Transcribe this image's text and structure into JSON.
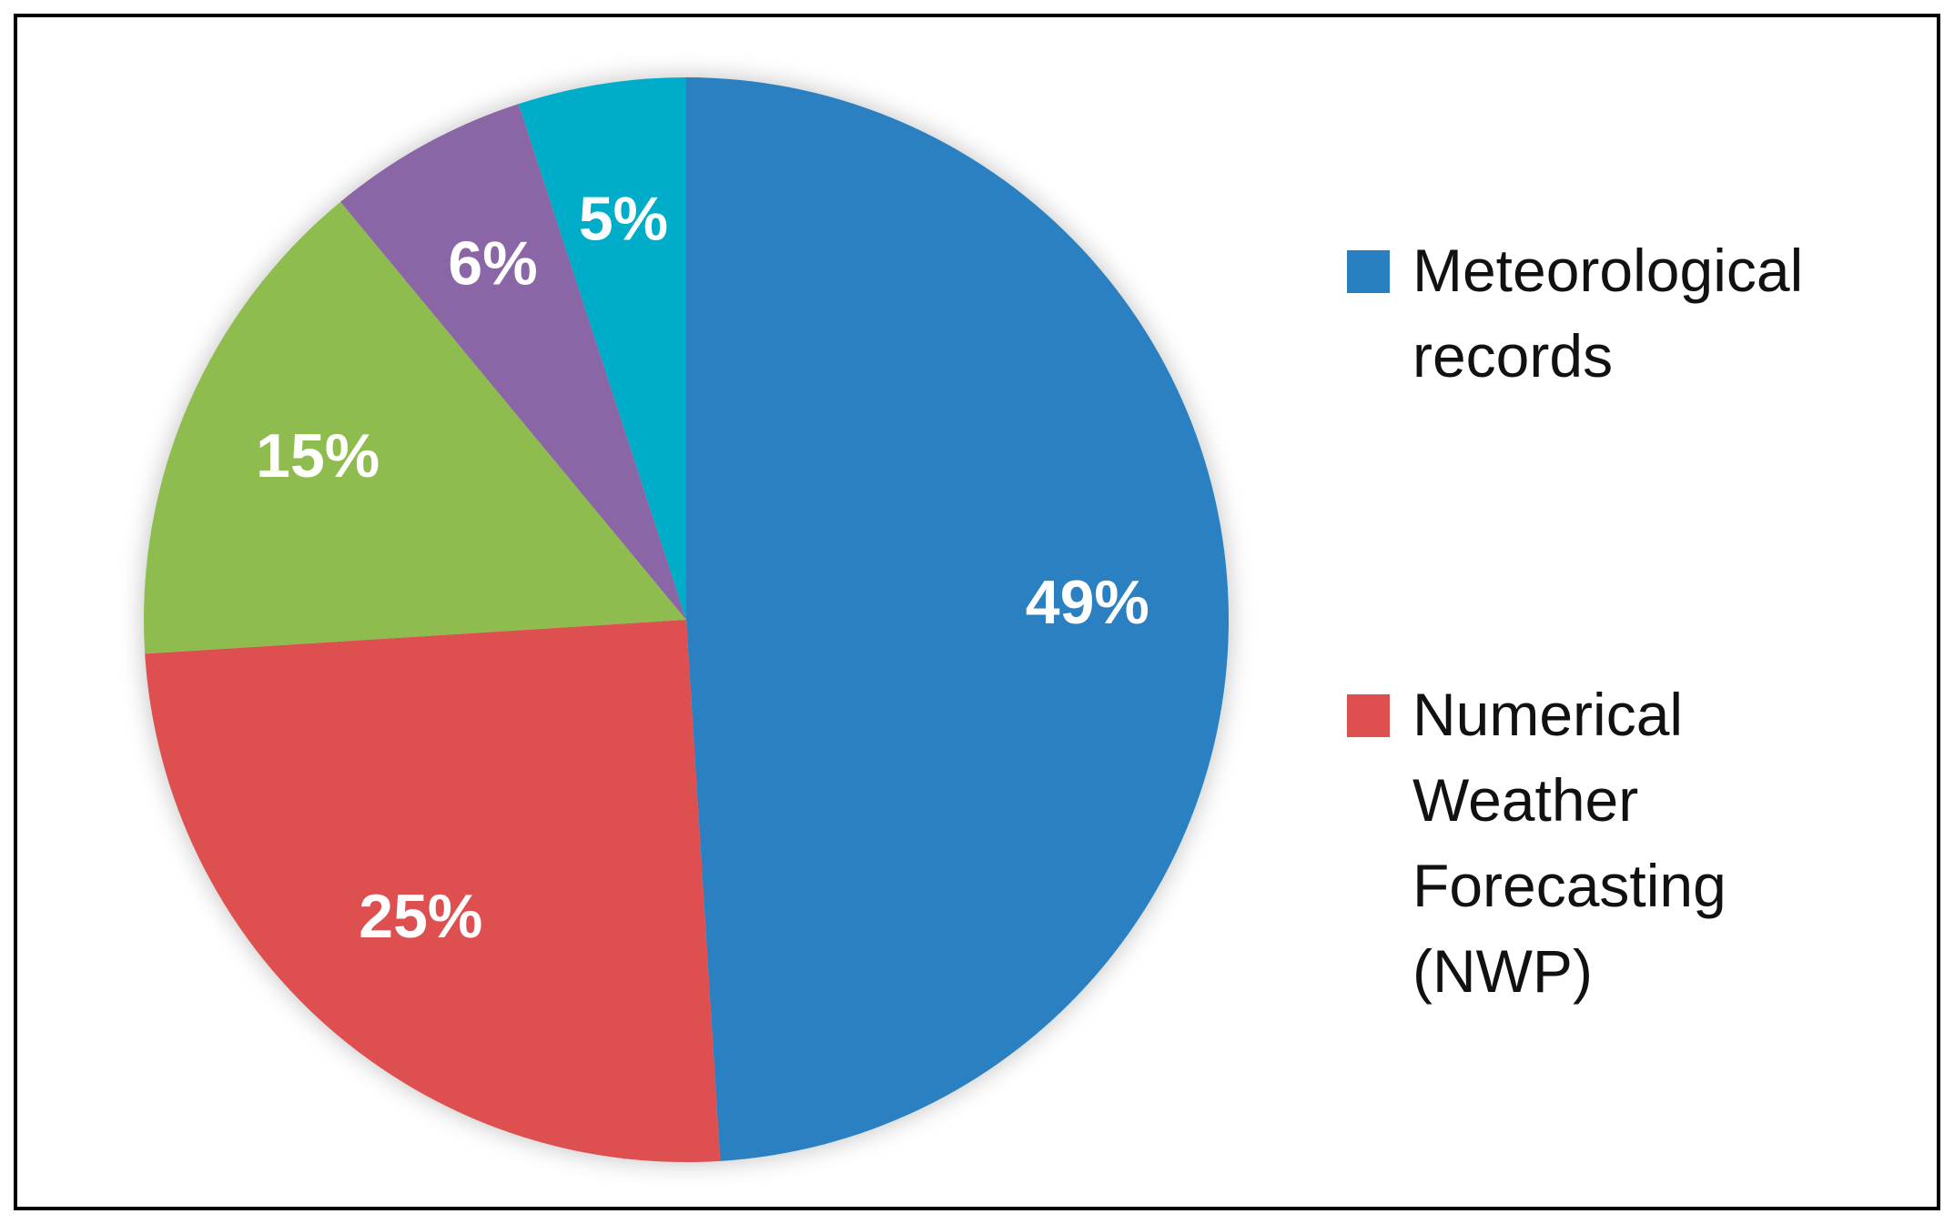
{
  "chart_data": {
    "type": "pie",
    "categories": [
      "Meteorological records",
      "Numerical Weather Forecasting (NWP)",
      null,
      null,
      null
    ],
    "values": [
      49,
      25,
      15,
      6,
      5
    ],
    "value_labels": [
      "49%",
      "25%",
      "15%",
      "6%",
      "5%"
    ],
    "colors": [
      "#2980c0",
      "#de5050",
      "#8fbc50",
      "#8b66a6",
      "#00adc8"
    ]
  }
}
